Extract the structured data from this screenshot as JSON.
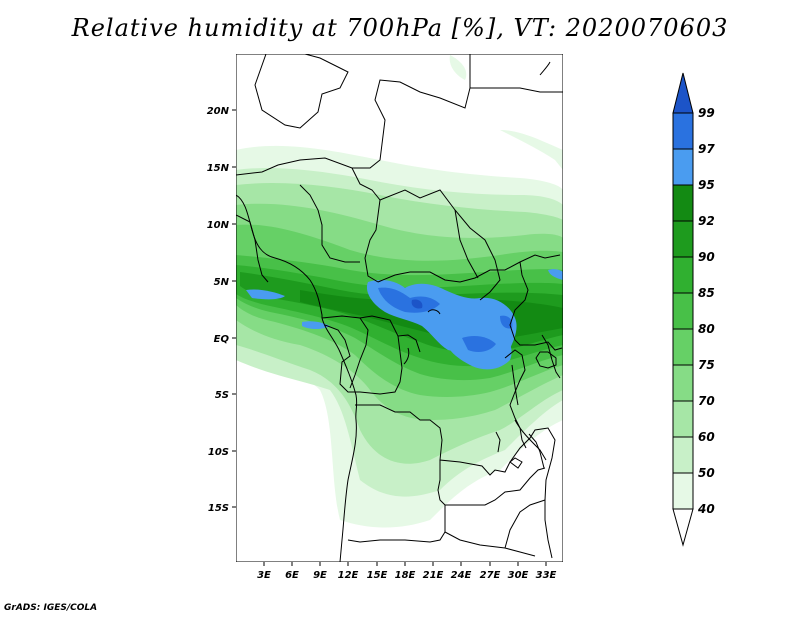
{
  "title": "Relative humidity at 700hPa [%], VT: 2020070603",
  "credit": "GrADS: IGES/COLA",
  "lat_labels": [
    "20N",
    "15N",
    "10N",
    "5N",
    "EQ",
    "5S",
    "10S",
    "15S"
  ],
  "lon_labels": [
    "3E",
    "6E",
    "9E",
    "12E",
    "15E",
    "18E",
    "21E",
    "24E",
    "27E",
    "30E",
    "33E"
  ],
  "colorbar": {
    "levels": [
      "40",
      "50",
      "60",
      "70",
      "75",
      "80",
      "85",
      "90",
      "92",
      "95",
      "97",
      "99"
    ],
    "colors": [
      "#ffffff",
      "#e6f9e6",
      "#c8f0c8",
      "#a6e6a6",
      "#86dc86",
      "#66d066",
      "#48c048",
      "#30b030",
      "#1e9b1e",
      "#138a13",
      "#4a9cf0",
      "#2a72e0",
      "#1c54c8"
    ]
  }
}
